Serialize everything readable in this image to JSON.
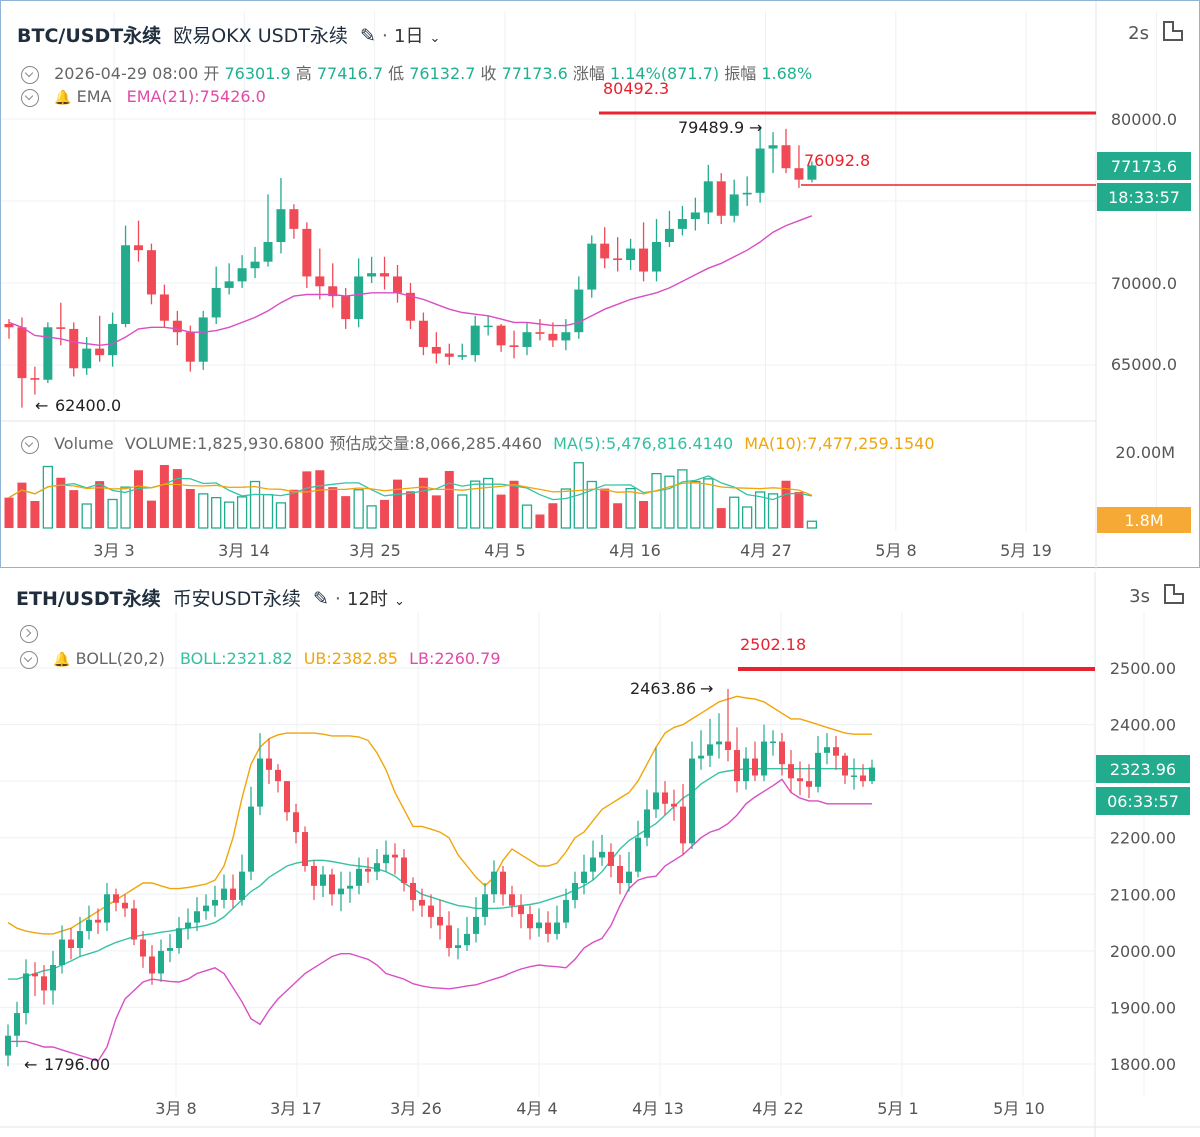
{
  "panel1": {
    "symbol": "BTC/USDT永续",
    "exchange": "欧易OKX USDT永续",
    "interval": "1日",
    "refresh": "2s",
    "ohlc": {
      "date": "2026-04-29 08:00",
      "open_label": "开",
      "open": "76301.9",
      "high_label": "高",
      "high": "77416.7",
      "low_label": "低",
      "low": "76132.7",
      "close_label": "收",
      "close": "77173.6",
      "chg_label": "涨幅",
      "chg": "1.14%(871.7)",
      "amp_label": "振幅",
      "amp": "1.68%"
    },
    "ema_name": "EMA",
    "ema_value": "EMA(21):75426.0",
    "volume_row": {
      "name": "Volume",
      "volume": "VOLUME:1,825,930.6800",
      "est": "预估成交量:8,066,285.4460",
      "ma5": "MA(5):5,476,816.4140",
      "ma10": "MA(10):7,477,259.1540"
    },
    "price_ticks": [
      "80000.0",
      "70000.0",
      "65000.0"
    ],
    "vol_ticks": [
      "20.00M"
    ],
    "vol_tag": "1.8M",
    "price_tag": "77173.6",
    "countdown": "18:33:57",
    "line_label_1": "80492.3",
    "line_label_2": "76092.8",
    "high_marker": "79489.9",
    "low_marker": "62400.0",
    "x_ticks": [
      "3月 3",
      "3月 14",
      "3月 25",
      "4月 5",
      "4月 16",
      "4月 27",
      "5月 8",
      "5月 19"
    ]
  },
  "panel2": {
    "symbol": "ETH/USDT永续",
    "exchange": "币安USDT永续",
    "interval": "12时",
    "refresh": "3s",
    "boll_name": "BOLL(20,2)",
    "boll": "BOLL:2321.82",
    "ub": "UB:2382.85",
    "lb": "LB:2260.79",
    "price_ticks": [
      "2500.00",
      "2400.00",
      "2200.00",
      "2100.00",
      "2000.00",
      "1900.00",
      "1800.00"
    ],
    "price_tag": "2323.96",
    "countdown": "06:33:57",
    "line_label": "2502.18",
    "high_marker": "2463.86",
    "low_marker": "1796.00",
    "x_ticks": [
      "3月 8",
      "3月 17",
      "3月 26",
      "4月 4",
      "4月 13",
      "4月 22",
      "5月 1",
      "5月 10"
    ]
  },
  "colors": {
    "up": "#22ab8d",
    "down": "#ef4a55",
    "ema": "#d94fc3",
    "ma5": "#35c3a4",
    "ma10": "#f0a50a",
    "alert": "#e8222e",
    "tag": "#22ab8d",
    "voltag": "#f7a935"
  },
  "chart_data": [
    {
      "type": "candlestick",
      "title": "BTC/USDT永续 1日",
      "ylim": [
        60500,
        82500
      ],
      "grid": true,
      "legend": "top-left",
      "x": [
        "2026-02-26",
        "2026-02-27",
        "2026-02-28",
        "2026-03-01",
        "2026-03-02",
        "2026-03-03",
        "2026-03-04",
        "2026-03-05",
        "2026-03-06",
        "2026-03-07",
        "2026-03-08",
        "2026-03-09",
        "2026-03-10",
        "2026-03-11",
        "2026-03-12",
        "2026-03-13",
        "2026-03-14",
        "2026-03-15",
        "2026-03-16",
        "2026-03-17",
        "2026-03-18",
        "2026-03-19",
        "2026-03-20",
        "2026-03-21",
        "2026-03-22",
        "2026-03-23",
        "2026-03-24",
        "2026-03-25",
        "2026-03-26",
        "2026-03-27",
        "2026-03-28",
        "2026-03-29",
        "2026-03-30",
        "2026-03-31",
        "2026-04-01",
        "2026-04-02",
        "2026-04-03",
        "2026-04-04",
        "2026-04-05",
        "2026-04-06",
        "2026-04-07",
        "2026-04-08",
        "2026-04-09",
        "2026-04-10",
        "2026-04-11",
        "2026-04-12",
        "2026-04-13",
        "2026-04-14",
        "2026-04-15",
        "2026-04-16",
        "2026-04-17",
        "2026-04-18",
        "2026-04-19",
        "2026-04-20",
        "2026-04-21",
        "2026-04-22",
        "2026-04-23",
        "2026-04-24",
        "2026-04-25",
        "2026-04-26",
        "2026-04-27",
        "2026-04-28",
        "2026-04-29"
      ],
      "open": [
        67500,
        67300,
        64200,
        64100,
        67300,
        67200,
        64800,
        66000,
        65600,
        67500,
        72300,
        72000,
        69300,
        67700,
        67000,
        65200,
        67900,
        69700,
        70100,
        70900,
        71300,
        72500,
        74500,
        73300,
        70400,
        69800,
        69200,
        67800,
        70400,
        70600,
        70400,
        69400,
        67700,
        66100,
        65700,
        65500,
        65600,
        67400,
        67400,
        66200,
        66100,
        67000,
        66900,
        66500,
        67000,
        69600,
        72400,
        71500,
        71400,
        72100,
        70700,
        72500,
        73300,
        73900,
        74300,
        76200,
        74100,
        75400,
        75500,
        78200,
        78400,
        77000,
        76300
      ],
      "close": [
        67300,
        64200,
        64100,
        67300,
        67200,
        64800,
        66000,
        65600,
        67500,
        72300,
        72000,
        69300,
        67700,
        67000,
        65200,
        67900,
        69700,
        70100,
        70900,
        71300,
        72500,
        74500,
        73300,
        70400,
        69800,
        69200,
        67800,
        70400,
        70600,
        70400,
        69400,
        67700,
        66100,
        65700,
        65500,
        65600,
        67400,
        67400,
        66200,
        66100,
        67000,
        66900,
        66500,
        67000,
        69600,
        72400,
        71500,
        71400,
        72100,
        70700,
        72500,
        73300,
        73900,
        74300,
        76200,
        74100,
        75400,
        75500,
        78200,
        78400,
        77000,
        76300,
        77173
      ],
      "high": [
        67800,
        67900,
        64900,
        67600,
        68800,
        67600,
        66700,
        68000,
        68200,
        73500,
        73800,
        72400,
        69900,
        68300,
        67400,
        68300,
        71000,
        71200,
        71700,
        72200,
        75400,
        76400,
        74800,
        73700,
        72100,
        71200,
        69700,
        71500,
        71600,
        71600,
        71100,
        70000,
        68200,
        67000,
        66300,
        66300,
        68000,
        68000,
        67500,
        67100,
        67600,
        67800,
        67600,
        67800,
        70400,
        72900,
        73400,
        72800,
        72700,
        73700,
        73900,
        74400,
        74700,
        75200,
        77200,
        76700,
        76300,
        76500,
        79489,
        79200,
        79400,
        78400,
        77416
      ],
      "low": [
        66600,
        62400,
        63200,
        63900,
        66200,
        64300,
        64400,
        65200,
        64900,
        67300,
        71300,
        68700,
        67300,
        66200,
        64600,
        64700,
        67500,
        69300,
        69700,
        70300,
        71000,
        71800,
        72700,
        69700,
        69000,
        68500,
        67200,
        67300,
        70000,
        69600,
        68800,
        67200,
        65600,
        65100,
        65000,
        65300,
        65200,
        66800,
        65800,
        65400,
        65600,
        66500,
        66100,
        65900,
        66600,
        69100,
        70900,
        70700,
        70800,
        70100,
        70100,
        72200,
        72900,
        73200,
        73600,
        73600,
        73700,
        74700,
        74900,
        76700,
        76700,
        75800,
        76132
      ],
      "ema21": [
        67600,
        67300,
        66800,
        66700,
        66600,
        66400,
        66300,
        66200,
        66300,
        66700,
        67200,
        67300,
        67300,
        67200,
        67000,
        67000,
        67100,
        67300,
        67600,
        67900,
        68300,
        68800,
        69200,
        69300,
        69300,
        69300,
        69200,
        69300,
        69400,
        69400,
        69400,
        69200,
        69000,
        68700,
        68400,
        68200,
        68100,
        68000,
        67800,
        67600,
        67600,
        67500,
        67400,
        67400,
        67600,
        68000,
        68400,
        68700,
        69000,
        69200,
        69400,
        69700,
        70100,
        70500,
        70900,
        71200,
        71600,
        72000,
        72500,
        73100,
        73500,
        73800,
        74100
      ],
      "volume": [
        8.1,
        12.1,
        7.2,
        16.4,
        13.4,
        10.1,
        6.4,
        12.5,
        7.6,
        10.9,
        15.4,
        7.3,
        16.8,
        15.7,
        10.4,
        9.1,
        8.1,
        6.9,
        8.3,
        12.4,
        8.9,
        6.7,
        10.2,
        15.1,
        15.4,
        10.9,
        8.5,
        10.2,
        5.9,
        7.5,
        12.9,
        9.8,
        13.4,
        8.7,
        15.2,
        8.8,
        12.5,
        13.2,
        8.9,
        12.6,
        6.1,
        3.6,
        6.6,
        10.4,
        17.4,
        12.4,
        10.5,
        6.6,
        10.5,
        7.2,
        14.5,
        13.8,
        15.5,
        12.4,
        13.1,
        5.3,
        8.2,
        5.6,
        9.6,
        9.1,
        12.6,
        9.6,
        1.8
      ],
      "series_ma5_label": "MA(5)",
      "series_ma10_label": "MA(10)"
    },
    {
      "type": "candlestick",
      "title": "ETH/USDT永续 12时",
      "ylim": [
        1770,
        2535
      ],
      "grid": true,
      "legend": "top-left",
      "x_start": "2026-02-26 00:00",
      "x_step_hours": 12,
      "open": [
        1815,
        1850,
        1890,
        1960,
        1955,
        1930,
        1975,
        2020,
        2005,
        2035,
        2055,
        2050,
        2100,
        2085,
        2075,
        2020,
        1990,
        1960,
        2000,
        2005,
        2040,
        2050,
        2070,
        2080,
        2090,
        2110,
        2090,
        2140,
        2255,
        2340,
        2320,
        2300,
        2245,
        2210,
        2150,
        2115,
        2135,
        2100,
        2110,
        2115,
        2145,
        2140,
        2155,
        2170,
        2165,
        2120,
        2090,
        2080,
        2060,
        2045,
        2005,
        2010,
        2030,
        2060,
        2100,
        2140,
        2100,
        2080,
        2065,
        2040,
        2050,
        2030,
        2050,
        2090,
        2120,
        2140,
        2165,
        2175,
        2150,
        2120,
        2140,
        2200,
        2250,
        2280,
        2260,
        2255,
        2190,
        2340,
        2345,
        2365,
        2370,
        2355,
        2300,
        2340,
        2310,
        2370,
        2370,
        2330,
        2305,
        2300,
        2290,
        2350,
        2360,
        2345,
        2310,
        2310,
        2300
      ],
      "close": [
        1850,
        1890,
        1960,
        1955,
        1930,
        1975,
        2020,
        2005,
        2035,
        2055,
        2050,
        2100,
        2085,
        2075,
        2020,
        1990,
        1960,
        2000,
        2005,
        2040,
        2050,
        2070,
        2080,
        2090,
        2110,
        2090,
        2140,
        2255,
        2340,
        2320,
        2300,
        2245,
        2210,
        2150,
        2115,
        2135,
        2100,
        2110,
        2115,
        2145,
        2140,
        2155,
        2170,
        2165,
        2120,
        2090,
        2080,
        2060,
        2045,
        2005,
        2010,
        2030,
        2060,
        2100,
        2140,
        2100,
        2080,
        2065,
        2040,
        2050,
        2030,
        2050,
        2090,
        2120,
        2140,
        2165,
        2175,
        2150,
        2120,
        2140,
        2200,
        2250,
        2280,
        2260,
        2255,
        2190,
        2340,
        2345,
        2365,
        2370,
        2355,
        2300,
        2340,
        2310,
        2370,
        2370,
        2330,
        2305,
        2300,
        2290,
        2350,
        2360,
        2345,
        2310,
        2310,
        2300,
        2324
      ],
      "high": [
        1870,
        1910,
        1985,
        1980,
        1975,
        2000,
        2045,
        2040,
        2060,
        2080,
        2075,
        2120,
        2110,
        2100,
        2090,
        2035,
        2010,
        2020,
        2030,
        2060,
        2075,
        2095,
        2100,
        2115,
        2135,
        2135,
        2170,
        2290,
        2385,
        2375,
        2330,
        2300,
        2260,
        2220,
        2160,
        2150,
        2145,
        2140,
        2140,
        2165,
        2165,
        2180,
        2195,
        2190,
        2180,
        2130,
        2110,
        2100,
        2090,
        2070,
        2040,
        2060,
        2095,
        2120,
        2160,
        2150,
        2115,
        2100,
        2080,
        2075,
        2070,
        2080,
        2110,
        2140,
        2170,
        2195,
        2205,
        2190,
        2170,
        2175,
        2230,
        2285,
        2360,
        2300,
        2285,
        2295,
        2370,
        2390,
        2410,
        2420,
        2463,
        2395,
        2360,
        2370,
        2400,
        2390,
        2385,
        2355,
        2335,
        2330,
        2380,
        2385,
        2380,
        2350,
        2340,
        2330,
        2338
      ],
      "low": [
        1796,
        1830,
        1870,
        1920,
        1905,
        1905,
        1960,
        1985,
        1990,
        2020,
        2030,
        2035,
        2070,
        2060,
        2010,
        1970,
        1940,
        1945,
        1980,
        1995,
        2020,
        2035,
        2055,
        2060,
        2075,
        2075,
        2080,
        2125,
        2240,
        2295,
        2280,
        2230,
        2190,
        2140,
        2090,
        2095,
        2080,
        2070,
        2085,
        2100,
        2120,
        2125,
        2140,
        2135,
        2105,
        2070,
        2060,
        2040,
        2020,
        1990,
        1985,
        2000,
        2015,
        2045,
        2085,
        2080,
        2060,
        2040,
        2020,
        2025,
        2015,
        2020,
        2040,
        2075,
        2100,
        2125,
        2150,
        2130,
        2100,
        2105,
        2130,
        2185,
        2235,
        2240,
        2230,
        2170,
        2180,
        2320,
        2325,
        2340,
        2335,
        2280,
        2285,
        2300,
        2300,
        2345,
        2310,
        2280,
        2275,
        2270,
        2280,
        2330,
        2320,
        2295,
        2285,
        2290,
        2295
      ],
      "boll_mid": [
        1950,
        1950,
        1955,
        1960,
        1965,
        1968,
        1975,
        1982,
        1990,
        1995,
        2000,
        2008,
        2015,
        2020,
        2025,
        2028,
        2030,
        2033,
        2035,
        2038,
        2040,
        2042,
        2045,
        2050,
        2060,
        2075,
        2090,
        2105,
        2115,
        2130,
        2140,
        2150,
        2155,
        2158,
        2160,
        2160,
        2158,
        2155,
        2152,
        2150,
        2148,
        2145,
        2140,
        2132,
        2120,
        2110,
        2100,
        2095,
        2090,
        2085,
        2080,
        2078,
        2075,
        2075,
        2075,
        2076,
        2078,
        2080,
        2082,
        2085,
        2090,
        2095,
        2100,
        2108,
        2115,
        2125,
        2140,
        2160,
        2180,
        2195,
        2205,
        2215,
        2225,
        2240,
        2255,
        2270,
        2280,
        2295,
        2305,
        2315,
        2318,
        2320,
        2322,
        2322,
        2322,
        2322,
        2322,
        2322,
        2322,
        2322,
        2322,
        2322,
        2322,
        2322,
        2322,
        2322,
        2322
      ],
      "boll_ub": [
        2050,
        2040,
        2035,
        2032,
        2030,
        2030,
        2035,
        2040,
        2050,
        2060,
        2070,
        2080,
        2090,
        2100,
        2110,
        2120,
        2120,
        2115,
        2110,
        2110,
        2112,
        2115,
        2118,
        2125,
        2150,
        2200,
        2270,
        2330,
        2360,
        2375,
        2382,
        2385,
        2385,
        2385,
        2385,
        2383,
        2380,
        2380,
        2380,
        2378,
        2372,
        2350,
        2320,
        2280,
        2250,
        2220,
        2220,
        2215,
        2210,
        2200,
        2170,
        2150,
        2130,
        2115,
        2130,
        2160,
        2180,
        2170,
        2160,
        2150,
        2150,
        2155,
        2175,
        2200,
        2210,
        2230,
        2250,
        2260,
        2270,
        2280,
        2300,
        2330,
        2360,
        2385,
        2395,
        2400,
        2410,
        2420,
        2430,
        2440,
        2445,
        2450,
        2447,
        2445,
        2440,
        2430,
        2420,
        2410,
        2410,
        2405,
        2400,
        2395,
        2390,
        2385,
        2383,
        2383,
        2383
      ],
      "boll_lb": [
        1840,
        1840,
        1840,
        1835,
        1830,
        1830,
        1825,
        1820,
        1815,
        1810,
        1805,
        1830,
        1880,
        1915,
        1930,
        1945,
        1950,
        1948,
        1946,
        1945,
        1950,
        1960,
        1965,
        1970,
        1960,
        1935,
        1910,
        1880,
        1870,
        1895,
        1915,
        1930,
        1945,
        1960,
        1970,
        1980,
        1990,
        1995,
        1995,
        1990,
        1985,
        1975,
        1960,
        1955,
        1950,
        1942,
        1938,
        1935,
        1934,
        1933,
        1935,
        1938,
        1940,
        1945,
        1950,
        1955,
        1962,
        1968,
        1972,
        1975,
        1973,
        1972,
        1970,
        1985,
        2005,
        2015,
        2022,
        2045,
        2080,
        2110,
        2125,
        2130,
        2132,
        2150,
        2160,
        2170,
        2185,
        2200,
        2210,
        2215,
        2225,
        2240,
        2260,
        2272,
        2282,
        2292,
        2303,
        2280,
        2270,
        2265,
        2265,
        2260,
        2260,
        2260,
        2260,
        2260,
        2260
      ],
      "ub_label": "UB",
      "lb_label": "LB"
    }
  ]
}
